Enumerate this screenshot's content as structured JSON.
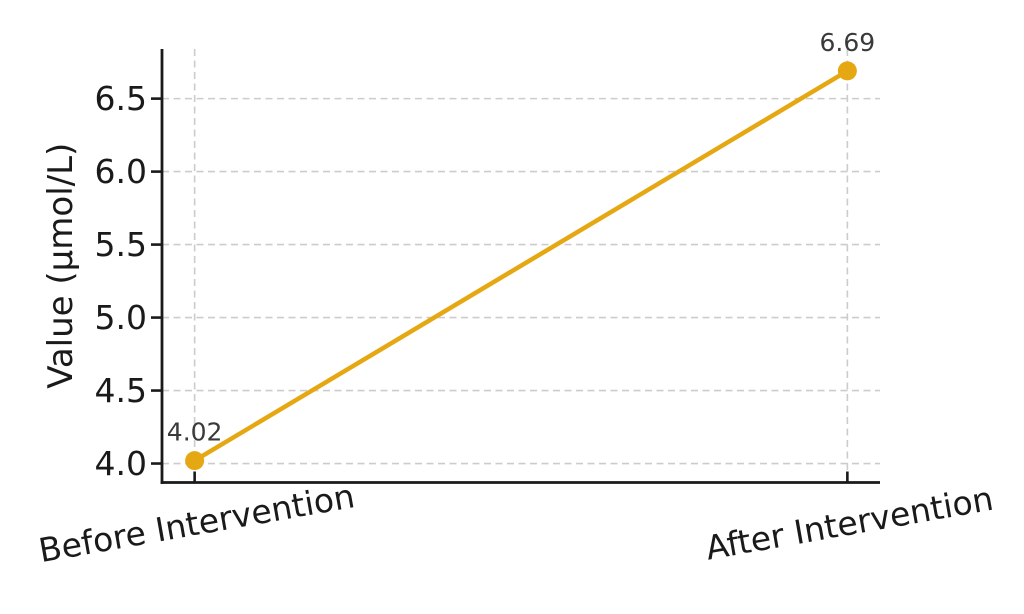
{
  "chart_data": {
    "type": "line",
    "categories": [
      "Before Intervention",
      "After Intervention"
    ],
    "values": [
      4.02,
      6.69
    ],
    "point_labels": [
      "4.02",
      "6.69"
    ],
    "title": "",
    "xlabel": "",
    "ylabel": "Value (µmol/L)",
    "yticks": [
      4.0,
      4.5,
      5.0,
      5.5,
      6.0,
      6.5
    ],
    "ytick_labels": [
      "4.0",
      "4.5",
      "5.0",
      "5.5",
      "6.0",
      "6.5"
    ],
    "ylim": [
      3.87,
      6.84
    ],
    "x_margin": 0.05,
    "xtick_rotation_deg": 10,
    "grid": {
      "show": true,
      "style": "dashed"
    },
    "legend": "none",
    "colors": {
      "line": "#E5A813",
      "marker": "#E5A813",
      "grid": "#cccccc",
      "spine": "#1a1a1a",
      "tick": "#1a1a1a",
      "tick_label": "#1a1a1a",
      "axis_label": "#1a1a1a",
      "annotation": "#3a3a3a",
      "background": "#ffffff"
    }
  }
}
